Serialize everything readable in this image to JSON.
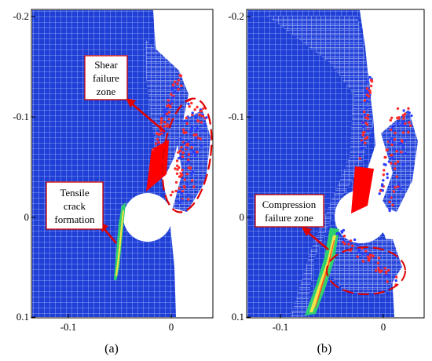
{
  "panels": [
    {
      "id": "a",
      "caption": "(a)",
      "y_ticks": [
        "-0.2",
        "-0.1",
        "0",
        "0.1"
      ],
      "x_ticks": [
        "-0.1",
        "0"
      ],
      "annotations": [
        {
          "lines": [
            "Shear",
            "failure",
            "zone"
          ]
        },
        {
          "lines": [
            "Tensile",
            "crack",
            "formation"
          ]
        }
      ]
    },
    {
      "id": "b",
      "caption": "(b)",
      "y_ticks": [
        "-0.2",
        "-0.1",
        "0",
        "0.1"
      ],
      "x_ticks": [
        "-0.1",
        "0"
      ],
      "annotations": [
        {
          "lines": [
            "Compression",
            "failure zone"
          ]
        }
      ]
    }
  ],
  "colors": {
    "mesh_fill": "#1f3fd6",
    "mesh_line": "#9fb6ff",
    "void": "#ffffff",
    "indenter": "#ff0000",
    "annotation_border": "#cc0000",
    "particles_red": "#ff2a2a",
    "particles_blue": "#2a3cff"
  }
}
